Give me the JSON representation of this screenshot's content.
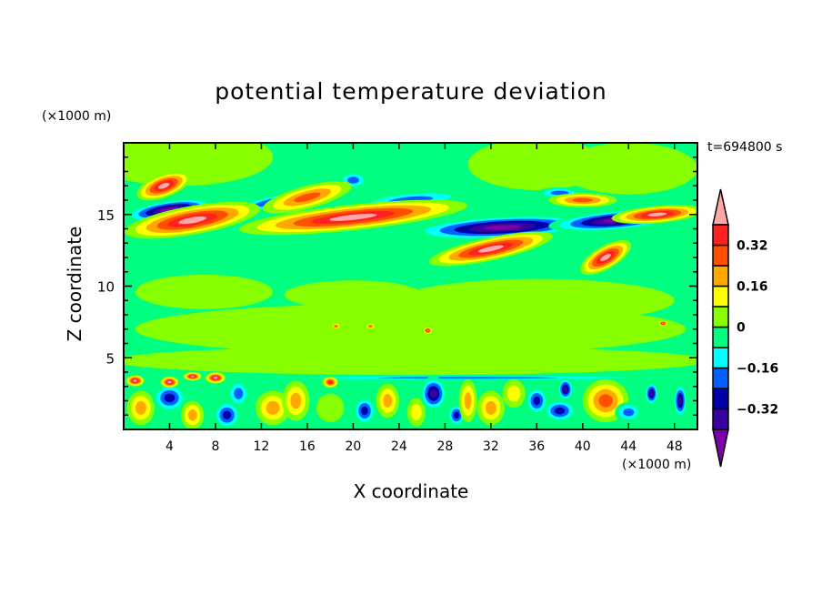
{
  "chart_data": {
    "type": "heatmap",
    "subtype": "filled-contour",
    "title": "potential temperature deviation",
    "xlabel": "X coordinate",
    "ylabel": "Z coordinate",
    "x_unit": "(×1000 m)",
    "y_unit": "(×1000 m)",
    "time_label": "t=694800 s",
    "xlim": [
      0,
      50
    ],
    "ylim": [
      0,
      20
    ],
    "xticks": [
      4,
      8,
      12,
      16,
      20,
      24,
      28,
      32,
      36,
      40,
      44,
      48
    ],
    "xtick_labels": [
      "4",
      "8",
      "12",
      "16",
      "20",
      "24",
      "28",
      "32",
      "36",
      "40",
      "44",
      "48"
    ],
    "yticks": [
      5,
      10,
      15
    ],
    "ytick_labels": [
      "5",
      "10",
      "15"
    ],
    "levels": [
      -0.4,
      -0.32,
      -0.24,
      -0.16,
      -0.08,
      0,
      0.08,
      0.16,
      0.24,
      0.32,
      0.4
    ],
    "colors": [
      "#7d00a8",
      "#3a00a0",
      "#0000a8",
      "#0060ff",
      "#00ffff",
      "#00ff80",
      "#88ff00",
      "#ffff00",
      "#ffa800",
      "#ff5000",
      "#ff2020",
      "#ffa8a8"
    ],
    "colorbar_labels": [
      {
        "value": 0.32,
        "label": "0.32"
      },
      {
        "value": 0.16,
        "label": "0.16"
      },
      {
        "value": 0,
        "label": "0"
      },
      {
        "value": -0.16,
        "label": "−0.16"
      },
      {
        "value": -0.32,
        "label": "−0.32"
      }
    ],
    "features": [
      {
        "x": 5,
        "z": 19,
        "rx": 8,
        "rz": 2,
        "rot": 0,
        "peak": 0.04
      },
      {
        "x": 36,
        "z": 18.5,
        "rx": 6,
        "rz": 1.8,
        "rot": 0,
        "peak": 0.04
      },
      {
        "x": 44,
        "z": 18.2,
        "rx": 6,
        "rz": 1.8,
        "rot": 0,
        "peak": 0.04
      },
      {
        "x": 7,
        "z": 9.6,
        "rx": 6,
        "rz": 1.2,
        "rot": 0,
        "peak": 0.04
      },
      {
        "x": 20,
        "z": 9.4,
        "rx": 6,
        "rz": 1.0,
        "rot": 0,
        "peak": 0.04
      },
      {
        "x": 36,
        "z": 9,
        "rx": 12,
        "rz": 1.5,
        "rot": 0,
        "peak": 0.04
      },
      {
        "x": 25,
        "z": 7,
        "rx": 24,
        "rz": 1.8,
        "rot": 0,
        "peak": 0.04
      },
      {
        "x": 25,
        "z": 4.8,
        "rx": 26,
        "rz": 1.0,
        "rot": 0,
        "peak": 0.04
      },
      {
        "x": 25,
        "z": 12.8,
        "rx": 30,
        "rz": 0.9,
        "rot": 0,
        "peak": -0.1
      },
      {
        "x": 25,
        "z": 16,
        "rx": 5,
        "rz": 0.6,
        "rot": -5,
        "peak": -0.22
      },
      {
        "x": 14,
        "z": 16,
        "rx": 5,
        "rz": 0.5,
        "rot": -10,
        "peak": -0.3
      },
      {
        "x": 20,
        "z": 17.4,
        "rx": 1.3,
        "rz": 0.6,
        "rot": 0,
        "peak": -0.22
      },
      {
        "x": 38,
        "z": 16.5,
        "rx": 2,
        "rz": 0.4,
        "rot": 0,
        "peak": -0.25
      },
      {
        "x": 4,
        "z": 15.3,
        "rx": 4,
        "rz": 0.7,
        "rot": -8,
        "peak": -0.45
      },
      {
        "x": 6,
        "z": 14.6,
        "rx": 6,
        "rz": 1.0,
        "rot": -10,
        "peak": 0.45
      },
      {
        "x": 3.5,
        "z": 17,
        "rx": 2.5,
        "rz": 0.8,
        "rot": -20,
        "peak": 0.45
      },
      {
        "x": 16,
        "z": 16.2,
        "rx": 4,
        "rz": 0.8,
        "rot": -15,
        "peak": 0.3
      },
      {
        "x": 33,
        "z": 14.1,
        "rx": 8,
        "rz": 0.8,
        "rot": -3,
        "peak": -0.45
      },
      {
        "x": 20,
        "z": 14.8,
        "rx": 10,
        "rz": 0.9,
        "rot": -6,
        "peak": 0.45
      },
      {
        "x": 32,
        "z": 12.6,
        "rx": 5.5,
        "rz": 0.8,
        "rot": -12,
        "peak": 0.45
      },
      {
        "x": 42,
        "z": 12,
        "rx": 2.5,
        "rz": 0.8,
        "rot": -30,
        "peak": 0.45
      },
      {
        "x": 43,
        "z": 14.6,
        "rx": 6,
        "rz": 0.7,
        "rot": -5,
        "peak": -0.45
      },
      {
        "x": 40,
        "z": 16,
        "rx": 3,
        "rz": 0.5,
        "rot": 0,
        "peak": 0.3
      },
      {
        "x": 46.5,
        "z": 15,
        "rx": 4,
        "rz": 0.6,
        "rot": -5,
        "peak": 0.45
      },
      {
        "x": 30,
        "z": 3.6,
        "rx": 20,
        "rz": 0.15,
        "rot": 0,
        "peak": -0.2
      },
      {
        "x": 1.5,
        "z": 1.5,
        "rx": 1.2,
        "rz": 1.2,
        "rot": 0,
        "peak": 0.2
      },
      {
        "x": 4,
        "z": 2.2,
        "rx": 1.5,
        "rz": 1,
        "rot": 0,
        "peak": -0.35
      },
      {
        "x": 6,
        "z": 1,
        "rx": 1,
        "rz": 1,
        "rot": 0,
        "peak": 0.25
      },
      {
        "x": 9,
        "z": 1,
        "rx": 1.2,
        "rz": 1,
        "rot": 0,
        "peak": -0.3
      },
      {
        "x": 10,
        "z": 2.5,
        "rx": 1,
        "rz": 1,
        "rot": 0,
        "peak": -0.2
      },
      {
        "x": 13,
        "z": 1.5,
        "rx": 1.5,
        "rz": 1.2,
        "rot": 0,
        "peak": 0.2
      },
      {
        "x": 15,
        "z": 2,
        "rx": 1.2,
        "rz": 1.4,
        "rot": 0,
        "peak": 0.22
      },
      {
        "x": 18,
        "z": 1.5,
        "rx": 1.2,
        "rz": 1,
        "rot": 0,
        "peak": 0.1
      },
      {
        "x": 21,
        "z": 1.3,
        "rx": 1,
        "rz": 1,
        "rot": 0,
        "peak": -0.3
      },
      {
        "x": 23,
        "z": 2,
        "rx": 1,
        "rz": 1.2,
        "rot": 0,
        "peak": 0.2
      },
      {
        "x": 25.5,
        "z": 1.2,
        "rx": 0.8,
        "rz": 1,
        "rot": 0,
        "peak": 0.15
      },
      {
        "x": 27,
        "z": 2.5,
        "rx": 1.2,
        "rz": 1.2,
        "rot": 0,
        "peak": -0.4
      },
      {
        "x": 29,
        "z": 1,
        "rx": 0.8,
        "rz": 0.8,
        "rot": 0,
        "peak": -0.3
      },
      {
        "x": 30,
        "z": 2,
        "rx": 0.8,
        "rz": 1.5,
        "rot": 0,
        "peak": 0.2
      },
      {
        "x": 32,
        "z": 1.5,
        "rx": 1.2,
        "rz": 1.2,
        "rot": 0,
        "peak": 0.2
      },
      {
        "x": 34,
        "z": 2.5,
        "rx": 1,
        "rz": 1,
        "rot": 0,
        "peak": 0.15
      },
      {
        "x": 36,
        "z": 2,
        "rx": 1,
        "rz": 1,
        "rot": 0,
        "peak": -0.3
      },
      {
        "x": 38,
        "z": 1.3,
        "rx": 1.5,
        "rz": 0.8,
        "rot": 0,
        "peak": -0.35
      },
      {
        "x": 38.5,
        "z": 2.8,
        "rx": 0.7,
        "rz": 0.8,
        "rot": 0,
        "peak": -0.4
      },
      {
        "x": 42,
        "z": 2,
        "rx": 2,
        "rz": 1.5,
        "rot": 0,
        "peak": 0.28
      },
      {
        "x": 44,
        "z": 1.2,
        "rx": 1.2,
        "rz": 0.7,
        "rot": 0,
        "peak": -0.2
      },
      {
        "x": 46,
        "z": 2.5,
        "rx": 0.6,
        "rz": 0.8,
        "rot": 0,
        "peak": -0.4
      },
      {
        "x": 48.5,
        "z": 2,
        "rx": 0.6,
        "rz": 1.2,
        "rot": 0,
        "peak": -0.4
      },
      {
        "x": 1,
        "z": 3.4,
        "rx": 0.8,
        "rz": 0.4,
        "rot": 0,
        "peak": 0.45
      },
      {
        "x": 4,
        "z": 3.3,
        "rx": 0.8,
        "rz": 0.4,
        "rot": 0,
        "peak": 0.45
      },
      {
        "x": 6,
        "z": 3.7,
        "rx": 0.8,
        "rz": 0.3,
        "rot": 0,
        "peak": 0.45
      },
      {
        "x": 8,
        "z": 3.6,
        "rx": 0.9,
        "rz": 0.4,
        "rot": 0,
        "peak": 0.45
      },
      {
        "x": 18,
        "z": 3.3,
        "rx": 0.7,
        "rz": 0.4,
        "rot": 0,
        "peak": 0.4
      },
      {
        "x": 18.5,
        "z": 7.2,
        "rx": 0.4,
        "rz": 0.2,
        "rot": 0,
        "peak": 0.35
      },
      {
        "x": 21.5,
        "z": 7.2,
        "rx": 0.4,
        "rz": 0.2,
        "rot": 0,
        "peak": 0.35
      },
      {
        "x": 26.5,
        "z": 6.9,
        "rx": 0.4,
        "rz": 0.25,
        "rot": 0,
        "peak": 0.45
      },
      {
        "x": 47,
        "z": 7.4,
        "rx": 0.4,
        "rz": 0.2,
        "rot": 0,
        "peak": 0.45
      }
    ]
  }
}
